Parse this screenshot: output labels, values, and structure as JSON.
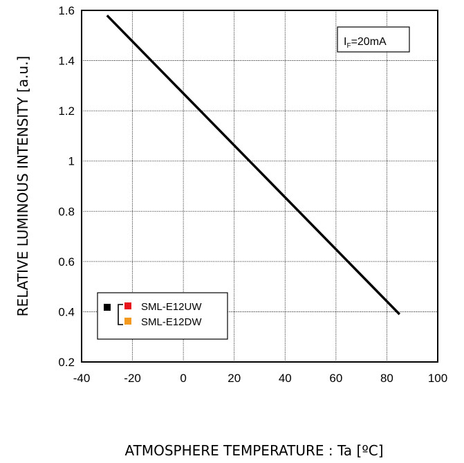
{
  "chart_data": {
    "type": "line",
    "xlabel": "ATMOSPHERE TEMPERATURE : Ta [ºC]",
    "ylabel": "RELATIVE LUMINOUS INTENSITY [a.u.]",
    "xlim": [
      -40,
      100
    ],
    "ylim": [
      0.2,
      1.6
    ],
    "xticks": [
      -40,
      -20,
      0,
      20,
      40,
      60,
      80,
      100
    ],
    "xtick_labels": [
      "-40",
      "-20",
      "0",
      "20",
      "40",
      "60",
      "80",
      "100"
    ],
    "yticks": [
      0.2,
      0.4,
      0.6,
      0.8,
      1.0,
      1.2,
      1.4,
      1.6
    ],
    "ytick_labels": [
      "0.2",
      "0.4",
      "0.6",
      "0.8",
      "1",
      "1.2",
      "1.4",
      "1.6"
    ],
    "grid": true,
    "condition": {
      "main": "I",
      "sub": "F",
      "rest": "=20mA"
    },
    "series": [
      {
        "name": "",
        "color": "#000000",
        "x": [
          -30,
          85
        ],
        "y": [
          1.58,
          0.39
        ]
      }
    ],
    "legend": {
      "placement": "bottom-left",
      "entries": [
        {
          "label": "SML-E12UW",
          "color": "#e8141c"
        },
        {
          "label": "SML-E12DW",
          "color": "#f39a1e"
        }
      ],
      "bracket_color": "#000000"
    }
  }
}
